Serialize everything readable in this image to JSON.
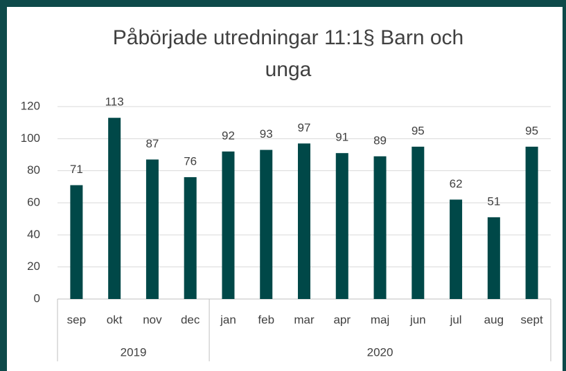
{
  "chart_data": {
    "type": "bar",
    "title": "Påbörjade utredningar 11:1§ Barn och unga",
    "groups": [
      {
        "name": "2019",
        "categories": [
          "sep",
          "okt",
          "nov",
          "dec"
        ],
        "values": [
          71,
          113,
          87,
          76
        ]
      },
      {
        "name": "2020",
        "categories": [
          "jan",
          "feb",
          "mar",
          "apr",
          "maj",
          "jun",
          "jul",
          "aug",
          "sept"
        ],
        "values": [
          92,
          93,
          97,
          91,
          89,
          95,
          62,
          51,
          95
        ]
      }
    ],
    "color": "#004848",
    "ylim": [
      0,
      120
    ],
    "yticks": [
      0,
      20,
      40,
      60,
      80,
      100,
      120
    ],
    "grid": true
  }
}
